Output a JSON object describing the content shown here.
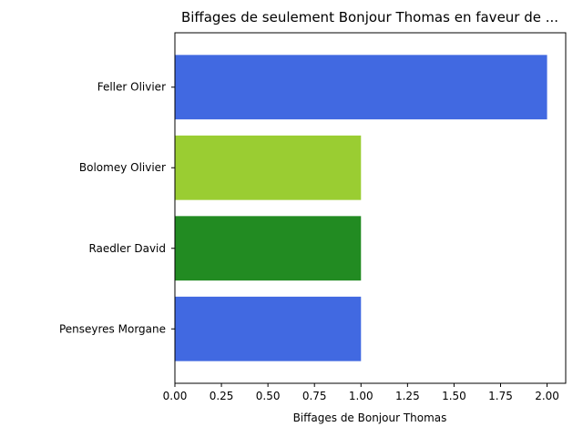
{
  "chart_data": {
    "type": "bar",
    "orientation": "horizontal",
    "title": "Biffages de seulement Bonjour Thomas en faveur de ...",
    "xlabel": "Biffages de Bonjour Thomas",
    "ylabel": "",
    "categories": [
      "Feller Olivier",
      "Bolomey Olivier",
      "Raedler David",
      "Penseyres Morgane"
    ],
    "values": [
      2,
      1,
      1,
      1
    ],
    "bar_colors": [
      "#4169e1",
      "#9acd32",
      "#228b22",
      "#4169e1"
    ],
    "xlim": [
      0,
      2.1
    ],
    "xticks": [
      "0.00",
      "0.25",
      "0.50",
      "0.75",
      "1.00",
      "1.25",
      "1.50",
      "1.75",
      "2.00"
    ],
    "grid": false,
    "legend": "none"
  }
}
